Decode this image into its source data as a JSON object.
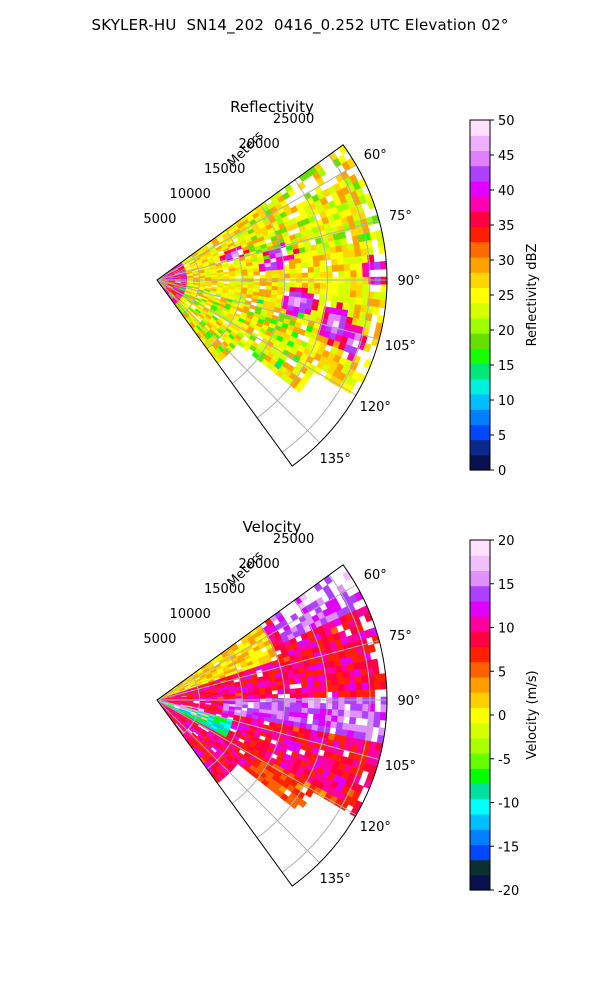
{
  "figure": {
    "title": "SKYLER-HU  SN14_202  0416_0.252 UTC Elevation 02°"
  },
  "chart_data": [
    {
      "type": "heatmap",
      "title": "Reflectivity",
      "range_label": "Meters",
      "range_ticks": [
        "5000",
        "10000",
        "15000",
        "20000",
        "25000"
      ],
      "range_tick_values": [
        5000,
        10000,
        15000,
        20000,
        25000
      ],
      "rmax": 27000,
      "azimuth_ticks": [
        "60°",
        "75°",
        "90°",
        "105°",
        "120°",
        "135°"
      ],
      "azimuth_tick_values": [
        60,
        75,
        90,
        105,
        120,
        135
      ],
      "azimuth_range": [
        54,
        144
      ],
      "grid": true,
      "colorbar": {
        "label": "Reflectivity dBZ",
        "min": 0,
        "max": 50,
        "ticks": [
          "0",
          "5",
          "10",
          "15",
          "20",
          "25",
          "30",
          "35",
          "40",
          "45",
          "50"
        ],
        "tick_values": [
          0,
          5,
          10,
          15,
          20,
          25,
          30,
          35,
          40,
          45,
          50
        ],
        "colors": [
          "#08124f",
          "#0b2a8c",
          "#0048ff",
          "#007fff",
          "#00bfff",
          "#00f0e0",
          "#00e87a",
          "#14ff00",
          "#66e000",
          "#9dff00",
          "#d6ff00",
          "#ffff00",
          "#ffd700",
          "#ffa200",
          "#ff6a00",
          "#ff1f00",
          "#ff0040",
          "#ff00b0",
          "#e400ff",
          "#b040ff",
          "#e080ff",
          "#f0b0ff",
          "#ffe0ff"
        ]
      },
      "field_description": "mostly 20-30 dBZ (yellow/green) with scattered 35-45 dBZ cells"
    },
    {
      "type": "heatmap",
      "title": "Velocity",
      "range_label": "Meters",
      "range_ticks": [
        "5000",
        "10000",
        "15000",
        "20000",
        "25000"
      ],
      "range_tick_values": [
        5000,
        10000,
        15000,
        20000,
        25000
      ],
      "rmax": 27000,
      "azimuth_ticks": [
        "60°",
        "75°",
        "90°",
        "105°",
        "120°",
        "135°"
      ],
      "azimuth_tick_values": [
        60,
        75,
        90,
        105,
        120,
        135
      ],
      "azimuth_range": [
        54,
        144
      ],
      "grid": true,
      "colorbar": {
        "label": "Velocity (m/s)",
        "min": -20,
        "max": 20,
        "ticks": [
          "-20",
          "-15",
          "-10",
          "-5",
          "0",
          "5",
          "10",
          "15",
          "20"
        ],
        "tick_values": [
          -20,
          -15,
          -10,
          -5,
          0,
          5,
          10,
          15,
          20
        ],
        "colors": [
          "#08124f",
          "#0b3030",
          "#0048ff",
          "#0080ff",
          "#00bfff",
          "#00ffff",
          "#00e0a0",
          "#00ff00",
          "#66ff00",
          "#aaff00",
          "#d6ff00",
          "#ffff00",
          "#ffd000",
          "#ffa000",
          "#ff6000",
          "#ff2000",
          "#ff0040",
          "#ff00a0",
          "#e000ff",
          "#b040ff",
          "#e090ff",
          "#f0c0ff",
          "#ffe0ff"
        ]
      },
      "field_description": "mostly 5-12 m/s (red/orange), 15 m/s (magenta) band near 90-100°, negative values (cyan) near radar"
    }
  ]
}
